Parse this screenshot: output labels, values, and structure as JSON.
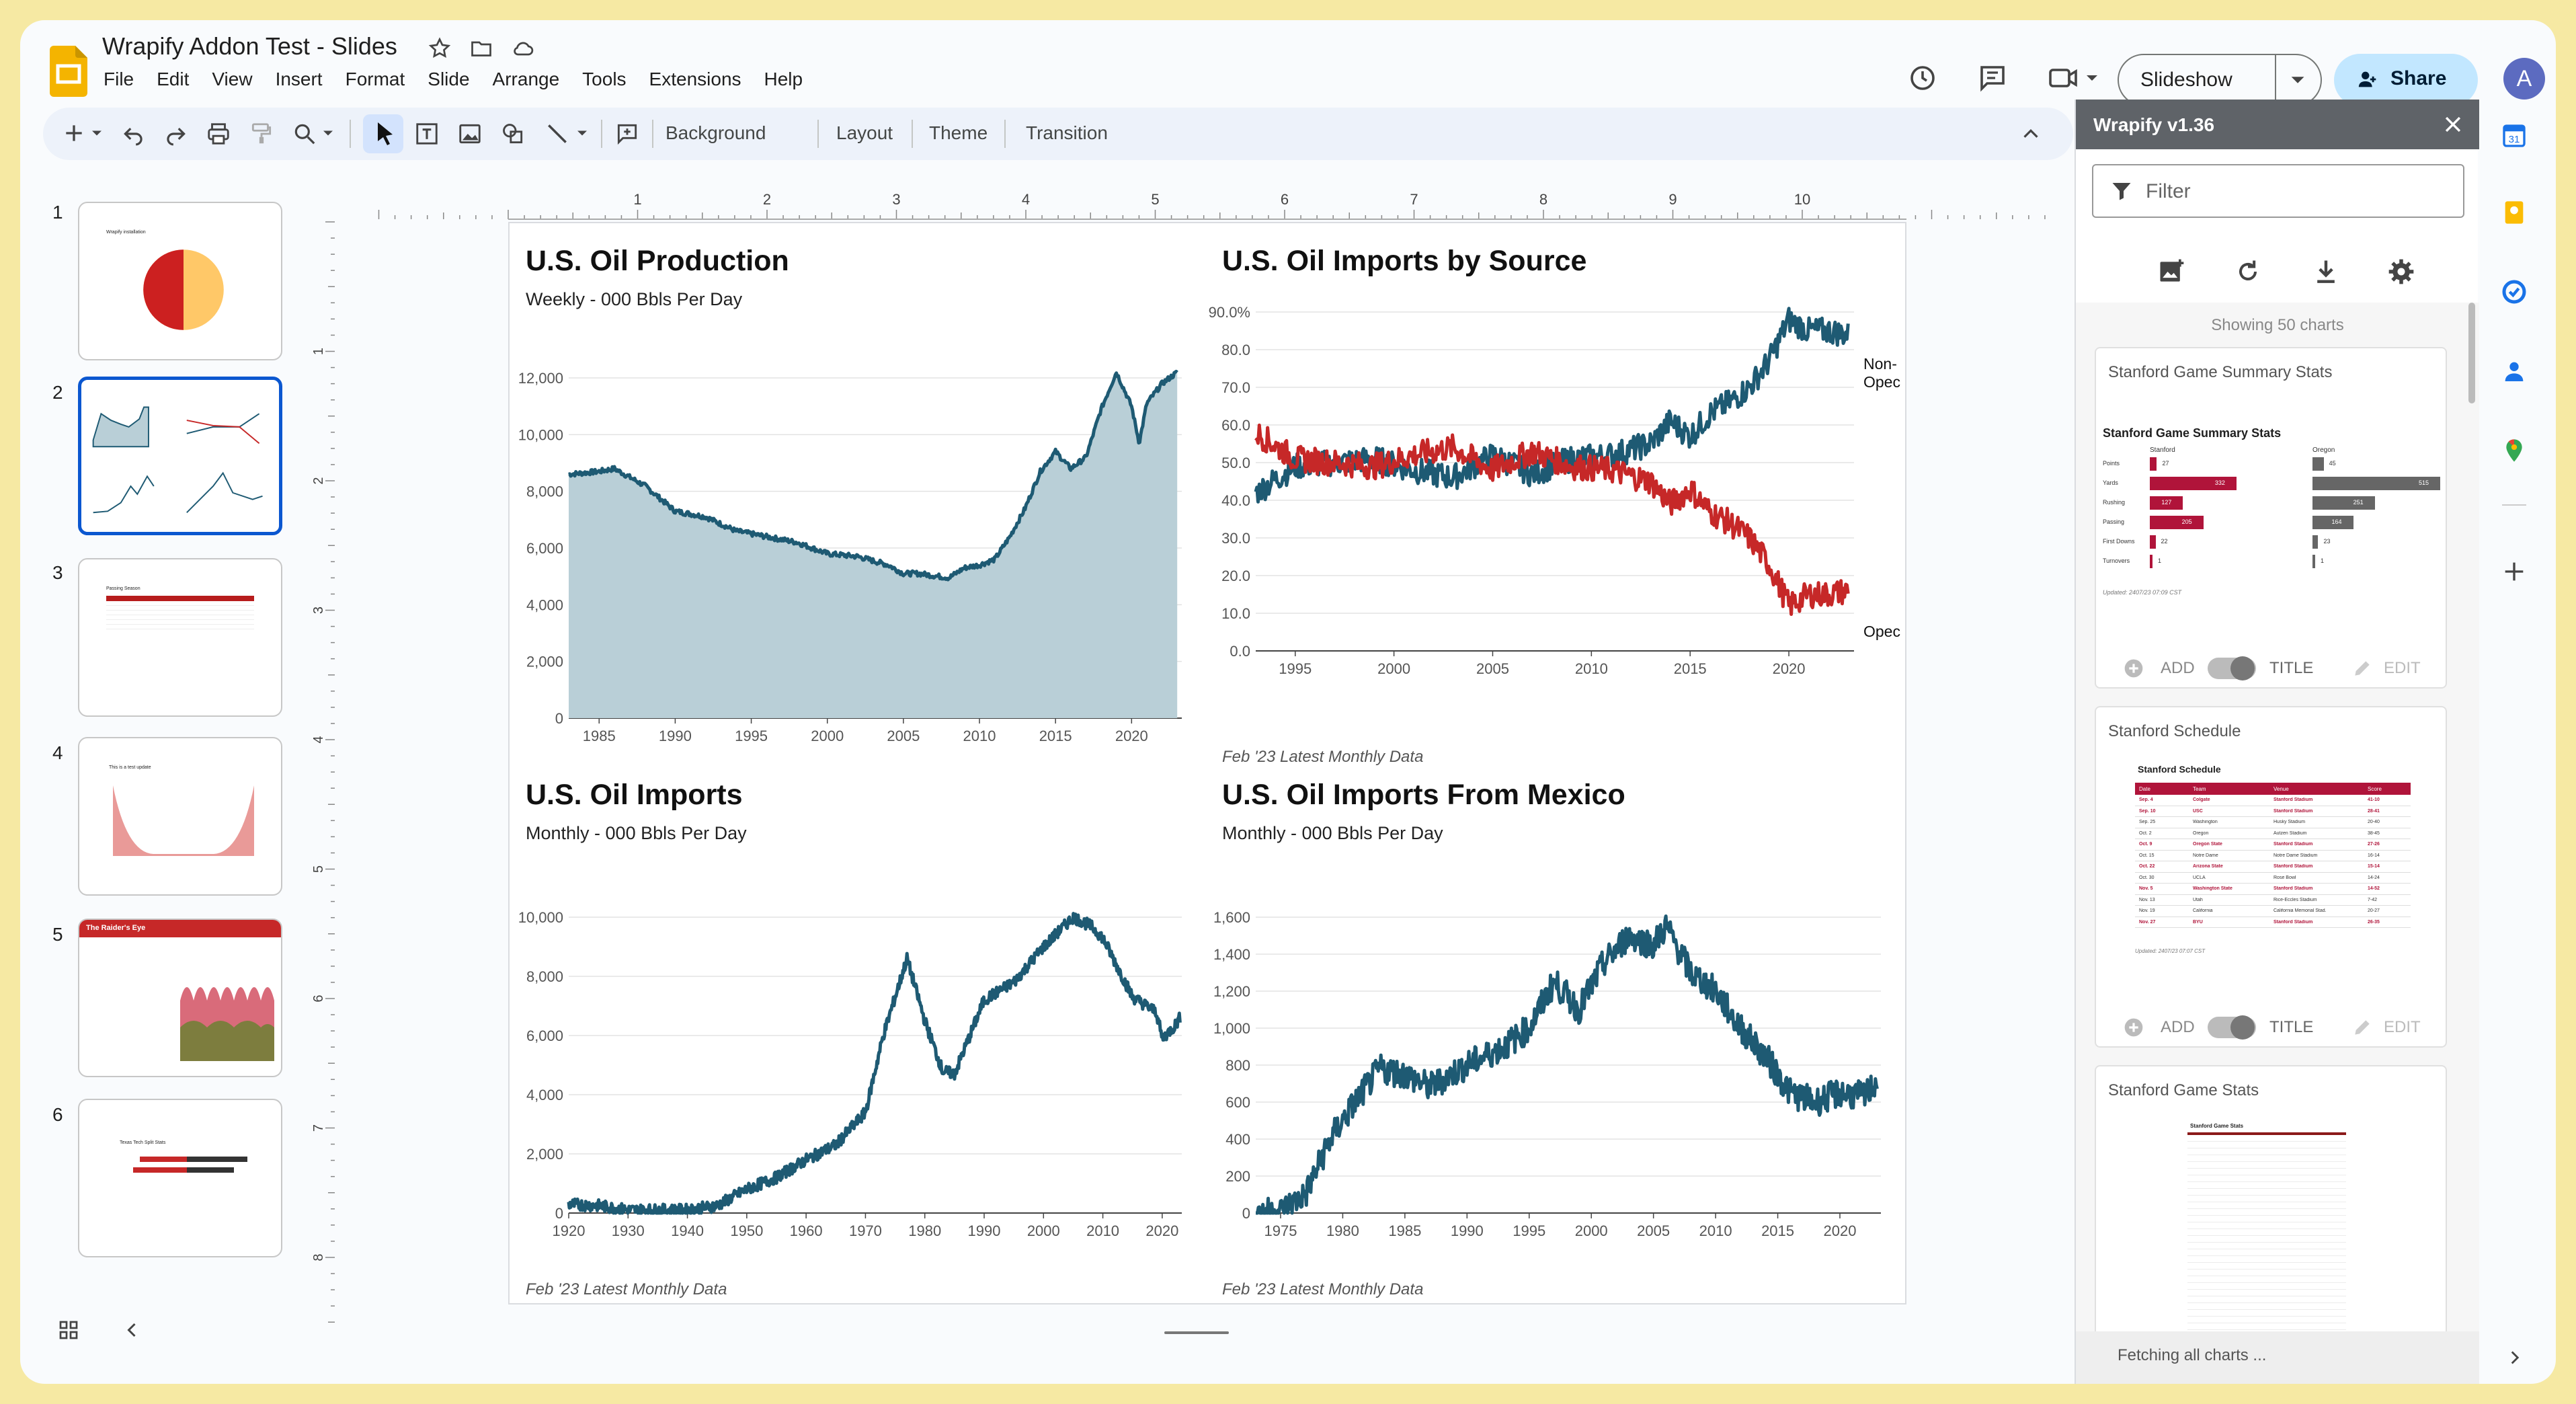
{
  "doc": {
    "title": "Wrapify Addon Test - Slides",
    "menu": [
      "File",
      "Edit",
      "View",
      "Insert",
      "Format",
      "Slide",
      "Arrange",
      "Tools",
      "Extensions",
      "Help"
    ]
  },
  "header": {
    "slideshow_label": "Slideshow",
    "share_label": "Share",
    "avatar": "A"
  },
  "toolbar": {
    "background_label": "Background",
    "layout_label": "Layout",
    "theme_label": "Theme",
    "transition_label": "Transition"
  },
  "ruler": {
    "h": [
      "1",
      "2",
      "3",
      "4",
      "5",
      "6",
      "7",
      "8",
      "9",
      "10"
    ],
    "v": [
      "1",
      "2",
      "3",
      "4",
      "5",
      "6",
      "7",
      "8"
    ]
  },
  "thumbnails": {
    "numbers": [
      "1",
      "2",
      "3",
      "4",
      "5",
      "6"
    ],
    "t1_title": "Wrapify installation",
    "t5_title": "The Raider's Eye",
    "t4_title": "This is a test update",
    "t3_title": "Passing Season",
    "t6_title": "Texas Tech Split Stats"
  },
  "sidebar": {
    "title": "Wrapify v1.36",
    "filter_placeholder": "Filter",
    "showing": "Showing 50 charts",
    "fetching": "Fetching all charts ...",
    "add_label": "ADD",
    "title_label": "TITLE",
    "edit_label": "EDIT",
    "cards": [
      {
        "title": "Stanford Game Summary Stats",
        "inner_title": "Stanford Game Summary Stats",
        "team_a": "Stanford",
        "team_b": "Oregon",
        "rows": [
          {
            "label": "Points",
            "a": 27,
            "b": 45
          },
          {
            "label": "Yards",
            "a": 332,
            "b": 515
          },
          {
            "label": "Rushing",
            "a": 127,
            "b": 251
          },
          {
            "label": "Passing",
            "a": 205,
            "b": 164
          },
          {
            "label": "First Downs",
            "a": 22,
            "b": 23
          },
          {
            "label": "Turnovers",
            "a": 1,
            "b": 1
          }
        ],
        "updated": "Updated: 2407/23 07:09 CST"
      },
      {
        "title": "Stanford Schedule",
        "inner_title": "Stanford Schedule",
        "headers": [
          "Date",
          "Team",
          "Venue",
          "Score"
        ],
        "rows": [
          [
            "Sep. 4",
            "Colgate",
            "Stanford Stadium",
            "41-10"
          ],
          [
            "Sep. 10",
            "USC",
            "Stanford Stadium",
            "28-41"
          ],
          [
            "Sep. 25",
            "Washington",
            "Husky Stadium",
            "20-40"
          ],
          [
            "Oct. 2",
            "Oregon",
            "Autzen Stadium",
            "38-45"
          ],
          [
            "Oct. 9",
            "Oregon State",
            "Stanford Stadium",
            "27-26"
          ],
          [
            "Oct. 15",
            "Notre Dame",
            "Notre Dame Stadium",
            "16-14"
          ],
          [
            "Oct. 22",
            "Arizona State",
            "Stanford Stadium",
            "15-14"
          ],
          [
            "Oct. 30",
            "UCLA",
            "Rose Bowl",
            "14-24"
          ],
          [
            "Nov. 5",
            "Washington State",
            "Stanford Stadium",
            "14-52"
          ],
          [
            "Nov. 13",
            "Utah",
            "Rice-Eccles Stadium",
            "7-42"
          ],
          [
            "Nov. 19",
            "California",
            "California Memorial Stad.",
            "20-27"
          ],
          [
            "Nov. 27",
            "BYU",
            "Stanford Stadium",
            "26-35"
          ]
        ],
        "updated": "Updated: 2407/23 07:07 CST"
      },
      {
        "title": "Stanford Game Stats",
        "inner_title": "Stanford Game Stats"
      }
    ]
  },
  "charts": {
    "production": {
      "title": "U.S. Oil Production",
      "subtitle": "Weekly - 000 Bbls Per Day"
    },
    "imports_source": {
      "title": "U.S. Oil Imports by Source",
      "footnote": "Feb '23 Latest Monthly Data",
      "label_nonopec": "Non-",
      "label_nonopec2": "Opec",
      "label_opec": "Opec"
    },
    "imports": {
      "title": "U.S. Oil Imports",
      "subtitle": "Monthly - 000 Bbls Per Day",
      "footnote": "Feb '23 Latest Monthly Data"
    },
    "mexico": {
      "title": "U.S. Oil Imports From Mexico",
      "subtitle": "Monthly - 000 Bbls Per Day",
      "footnote": "Feb '23 Latest Monthly Data"
    }
  },
  "chart_data": [
    {
      "type": "area",
      "title": "U.S. Oil Production",
      "subtitle": "Weekly - 000 Bbls Per Day",
      "ylim": [
        0,
        12000
      ],
      "yticks": [
        "0",
        "2,000",
        "4,000",
        "6,000",
        "8,000",
        "10,000",
        "12,000"
      ],
      "xticks": [
        "1985",
        "1990",
        "1995",
        "2000",
        "2005",
        "2010",
        "2015",
        "2020"
      ],
      "x": [
        1983,
        1985,
        1986,
        1988,
        1990,
        1992,
        1994,
        1996,
        1998,
        2000,
        2002,
        2004,
        2005,
        2006,
        2008,
        2009,
        2010,
        2011,
        2012,
        2013,
        2014,
        2015,
        2016,
        2017,
        2018,
        2019,
        2020,
        2020.5,
        2021,
        2022,
        2023
      ],
      "values": [
        8600,
        8700,
        8800,
        8200,
        7300,
        7100,
        6600,
        6400,
        6200,
        5800,
        5700,
        5400,
        5100,
        5100,
        4950,
        5300,
        5400,
        5600,
        6400,
        7400,
        8700,
        9400,
        8800,
        9200,
        10900,
        12200,
        11000,
        9700,
        11100,
        11800,
        12200
      ],
      "grid": true
    },
    {
      "type": "line",
      "title": "U.S. Oil Imports by Source",
      "ylim": [
        0,
        90
      ],
      "yticks": [
        "0.0",
        "10.0",
        "20.0",
        "30.0",
        "40.0",
        "50.0",
        "60.0",
        "70.0",
        "80.0",
        "90.0%"
      ],
      "xticks": [
        "1995",
        "2000",
        "2005",
        "2010",
        "2015",
        "2020"
      ],
      "x": [
        1993,
        1995,
        1997,
        1999,
        2001,
        2003,
        2005,
        2007,
        2009,
        2011,
        2013,
        2014,
        2015,
        2016,
        2017,
        2018,
        2019,
        2020,
        2021,
        2022,
        2023
      ],
      "series": [
        {
          "name": "Non-Opec",
          "values": [
            42,
            49,
            50,
            51,
            48,
            46,
            52,
            47,
            51,
            52,
            55,
            61,
            57,
            63,
            66,
            70,
            77,
            88,
            85,
            85,
            84
          ]
        },
        {
          "name": "Opec",
          "values": [
            58,
            51,
            50,
            49,
            52,
            54,
            48,
            53,
            49,
            48,
            45,
            39,
            43,
            37,
            34,
            30,
            23,
            12,
            15,
            15,
            16
          ]
        }
      ],
      "grid": true
    },
    {
      "type": "line",
      "title": "U.S. Oil Imports",
      "subtitle": "Monthly - 000 Bbls Per Day",
      "ylim": [
        0,
        10000
      ],
      "yticks": [
        "0",
        "2,000",
        "4,000",
        "6,000",
        "8,000",
        "10,000"
      ],
      "xticks": [
        "1920",
        "1930",
        "1940",
        "1950",
        "1960",
        "1970",
        "1980",
        "1990",
        "2000",
        "2010",
        "2020"
      ],
      "x": [
        1920,
        1925,
        1930,
        1935,
        1940,
        1945,
        1950,
        1955,
        1960,
        1965,
        1970,
        1973,
        1977,
        1980,
        1983,
        1985,
        1990,
        1995,
        2000,
        2005,
        2008,
        2010,
        2015,
        2019,
        2020,
        2021,
        2022,
        2023
      ],
      "values": [
        300,
        250,
        100,
        100,
        100,
        250,
        800,
        1200,
        1800,
        2300,
        3400,
        6000,
        8600,
        6500,
        4800,
        4700,
        7200,
        7800,
        9000,
        10000,
        9700,
        9300,
        7300,
        6800,
        5900,
        6100,
        6300,
        6600
      ],
      "grid": true
    },
    {
      "type": "line",
      "title": "U.S. Oil Imports From Mexico",
      "subtitle": "Monthly - 000 Bbls Per Day",
      "ylim": [
        0,
        1600
      ],
      "yticks": [
        "0",
        "200",
        "400",
        "600",
        "800",
        "1,000",
        "1,200",
        "1,400",
        "1,600"
      ],
      "xticks": [
        "1975",
        "1980",
        "1985",
        "1990",
        "1995",
        "2000",
        "2005",
        "2010",
        "2015",
        "2020"
      ],
      "x": [
        1973,
        1975,
        1977,
        1979,
        1981,
        1983,
        1985,
        1987,
        1990,
        1993,
        1995,
        1997,
        1999,
        2001,
        2003,
        2005,
        2006,
        2008,
        2010,
        2012,
        2014,
        2016,
        2018,
        2020,
        2022,
        2023
      ],
      "values": [
        0,
        10,
        100,
        400,
        600,
        780,
        750,
        680,
        800,
        900,
        1000,
        1250,
        1100,
        1350,
        1500,
        1450,
        1550,
        1300,
        1200,
        1000,
        850,
        650,
        600,
        650,
        630,
        720
      ],
      "grid": true
    }
  ]
}
